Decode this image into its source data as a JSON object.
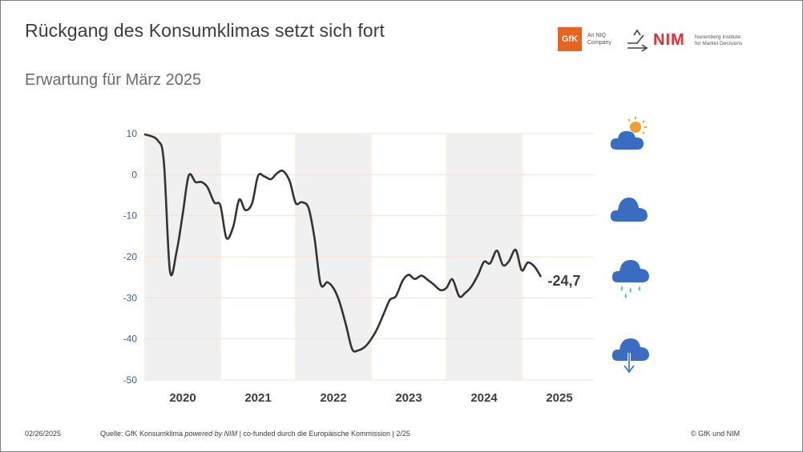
{
  "title": "Rückgang des Konsumklimas setzt sich fort",
  "subtitle": "Erwartung für März 2025",
  "logos": {
    "gfk_mark": "GfK",
    "gfk_sub_1": "An NIQ",
    "gfk_sub_2": "Company",
    "nim_mark": "NIM",
    "nim_sub_1": "Nuremberg Institute",
    "nim_sub_2": "for Market Decisions"
  },
  "footer": {
    "date": "02/26/2025",
    "source_prefix": "Quelle: GfK Konsumklima ",
    "source_italic": "powered by NIM",
    "source_suffix": " | co-funded durch die Europäische Kommission | 2/25",
    "copyright": "© GfK und NIM"
  },
  "weather_icons": [
    "sun-cloud-icon",
    "cloud-icon",
    "rain-cloud-icon",
    "storm-cloud-icon"
  ],
  "colors": {
    "line": "#333333",
    "axis_tick": "#3d5f9e",
    "year_label": "#3c3c3c",
    "shade": "#f0f0f0",
    "gridline": "#f6e2cf",
    "weather_blue": "#3a6cc2",
    "sun": "#f0a030",
    "rain": "#63c0d8"
  },
  "chart_data": {
    "type": "line",
    "ylim": [
      -50,
      10
    ],
    "yticks": [
      "10",
      "0",
      "-10",
      "-20",
      "-30",
      "-40",
      "-50"
    ],
    "year_labels": [
      "2020",
      "2021",
      "2022",
      "2023",
      "2024",
      "2025"
    ],
    "shaded_years": [
      "2020",
      "2022",
      "2024"
    ],
    "end_label": "-24,7",
    "series": [
      {
        "values": [
          {
            "x": 2020.0,
            "y": 9.8
          },
          {
            "x": 2020.17,
            "y": 8.3
          },
          {
            "x": 2020.25,
            "y": 3.0
          },
          {
            "x": 2020.33,
            "y": -23.4
          },
          {
            "x": 2020.42,
            "y": -18.6
          },
          {
            "x": 2020.5,
            "y": -9.6
          },
          {
            "x": 2020.58,
            "y": -0.2
          },
          {
            "x": 2020.67,
            "y": -1.8
          },
          {
            "x": 2020.75,
            "y": -1.8
          },
          {
            "x": 2020.83,
            "y": -3.1
          },
          {
            "x": 2020.92,
            "y": -6.8
          },
          {
            "x": 2021.0,
            "y": -7.5
          },
          {
            "x": 2021.08,
            "y": -15.4
          },
          {
            "x": 2021.17,
            "y": -12.7
          },
          {
            "x": 2021.25,
            "y": -6.1
          },
          {
            "x": 2021.33,
            "y": -8.6
          },
          {
            "x": 2021.42,
            "y": -7.0
          },
          {
            "x": 2021.5,
            "y": -0.3
          },
          {
            "x": 2021.58,
            "y": -0.4
          },
          {
            "x": 2021.67,
            "y": -1.1
          },
          {
            "x": 2021.75,
            "y": 0.3
          },
          {
            "x": 2021.83,
            "y": 0.9
          },
          {
            "x": 2021.92,
            "y": -1.6
          },
          {
            "x": 2022.0,
            "y": -6.9
          },
          {
            "x": 2022.08,
            "y": -6.7
          },
          {
            "x": 2022.17,
            "y": -8.1
          },
          {
            "x": 2022.25,
            "y": -15.5
          },
          {
            "x": 2022.33,
            "y": -26.6
          },
          {
            "x": 2022.42,
            "y": -26.2
          },
          {
            "x": 2022.5,
            "y": -27.6
          },
          {
            "x": 2022.58,
            "y": -30.9
          },
          {
            "x": 2022.67,
            "y": -36.8
          },
          {
            "x": 2022.75,
            "y": -42.5
          },
          {
            "x": 2022.83,
            "y": -42.8
          },
          {
            "x": 2022.92,
            "y": -41.9
          },
          {
            "x": 2023.0,
            "y": -40.1
          },
          {
            "x": 2023.08,
            "y": -37.6
          },
          {
            "x": 2023.17,
            "y": -33.8
          },
          {
            "x": 2023.25,
            "y": -30.5
          },
          {
            "x": 2023.33,
            "y": -29.6
          },
          {
            "x": 2023.42,
            "y": -25.8
          },
          {
            "x": 2023.5,
            "y": -24.4
          },
          {
            "x": 2023.58,
            "y": -25.4
          },
          {
            "x": 2023.67,
            "y": -24.6
          },
          {
            "x": 2023.75,
            "y": -25.6
          },
          {
            "x": 2023.83,
            "y": -26.7
          },
          {
            "x": 2023.92,
            "y": -28.1
          },
          {
            "x": 2024.0,
            "y": -27.6
          },
          {
            "x": 2024.08,
            "y": -25.5
          },
          {
            "x": 2024.17,
            "y": -29.6
          },
          {
            "x": 2024.25,
            "y": -28.8
          },
          {
            "x": 2024.33,
            "y": -27.3
          },
          {
            "x": 2024.42,
            "y": -24.4
          },
          {
            "x": 2024.5,
            "y": -21.2
          },
          {
            "x": 2024.58,
            "y": -21.6
          },
          {
            "x": 2024.67,
            "y": -18.5
          },
          {
            "x": 2024.75,
            "y": -22.0
          },
          {
            "x": 2024.83,
            "y": -21.1
          },
          {
            "x": 2024.92,
            "y": -18.3
          },
          {
            "x": 2025.0,
            "y": -23.3
          },
          {
            "x": 2025.08,
            "y": -21.4
          },
          {
            "x": 2025.17,
            "y": -22.4
          },
          {
            "x": 2025.25,
            "y": -24.7
          }
        ]
      }
    ]
  }
}
